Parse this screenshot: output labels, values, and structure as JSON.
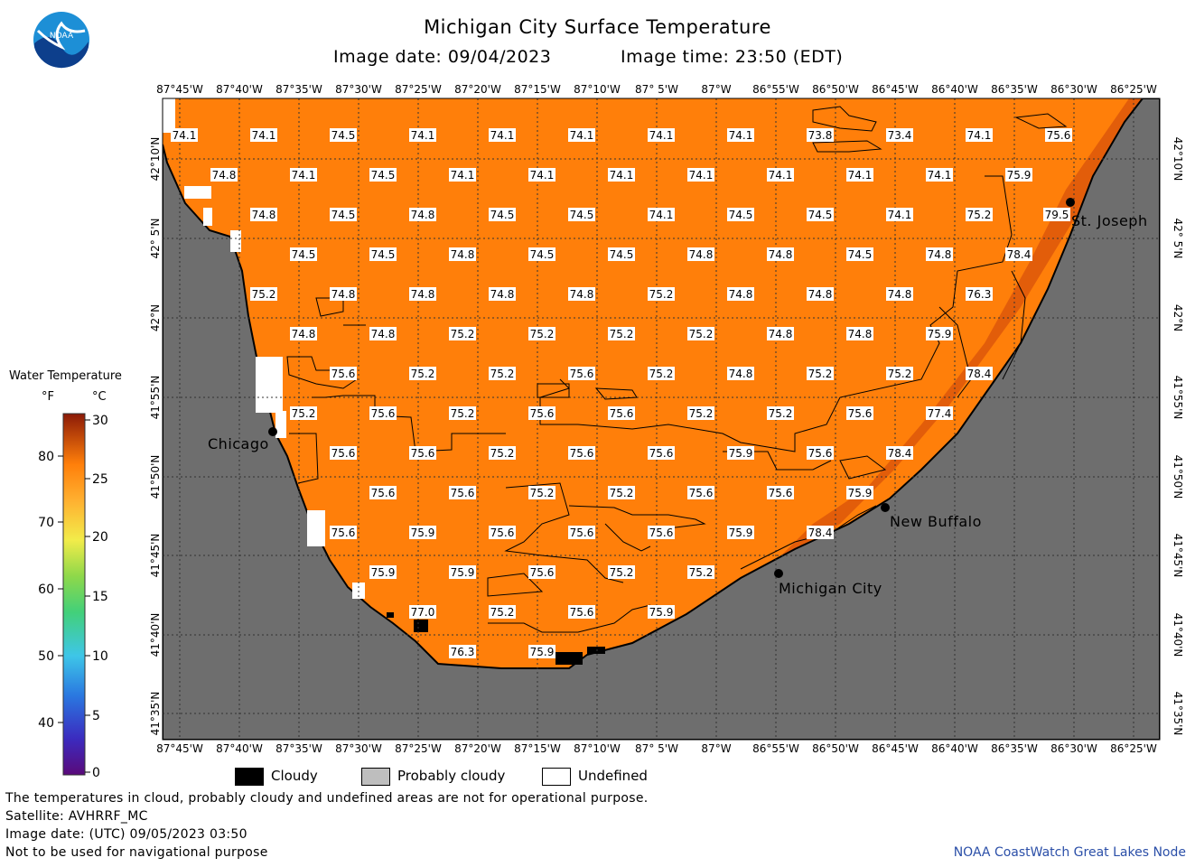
{
  "header": {
    "title": "Michigan City Surface Temperature",
    "image_date": "Image date: 09/04/2023",
    "image_time": "Image time: 23:50 (EDT)",
    "logo_text": "NOAA"
  },
  "colorbar": {
    "title": "Water Temperature",
    "unit_f": "°F",
    "unit_c": "°C",
    "f_ticks": [
      "80",
      "70",
      "60",
      "50",
      "40"
    ],
    "c_ticks": [
      "30",
      "25",
      "20",
      "15",
      "10",
      "5",
      "0"
    ]
  },
  "axes": {
    "lon_labels": [
      "87°45'W",
      "87°40'W",
      "87°35'W",
      "87°30'W",
      "87°25'W",
      "87°20'W",
      "87°15'W",
      "87°10'W",
      "87° 5'W",
      "87°W",
      "86°55'W",
      "86°50'W",
      "86°45'W",
      "86°40'W",
      "86°35'W",
      "86°30'W",
      "86°25'W"
    ],
    "lat_labels": [
      "42°10'N",
      "42° 5'N",
      "42°N",
      "41°55'N",
      "41°50'N",
      "41°45'N",
      "41°40'N",
      "41°35'N"
    ]
  },
  "places": [
    {
      "name": "St. Joseph"
    },
    {
      "name": "Chicago"
    },
    {
      "name": "New Buffalo"
    },
    {
      "name": "Michigan City"
    }
  ],
  "temperatures": [
    [
      "74.1",
      "74.1",
      "74.5",
      "74.1",
      "74.1",
      "74.1",
      "74.1",
      "74.1",
      "73.8",
      "73.4",
      "74.1",
      "75.6"
    ],
    [
      "74.8",
      "74.1",
      "74.5",
      "74.1",
      "74.1",
      "74.1",
      "74.1",
      "74.1",
      "74.1",
      "74.1",
      "75.9",
      "79.5"
    ],
    [
      "74.8",
      "74.5",
      "74.8",
      "74.5",
      "74.5",
      "74.1",
      "74.5",
      "74.5",
      "74.1",
      "75.2"
    ],
    [
      "74.5",
      "74.5",
      "74.8",
      "74.5",
      "74.5",
      "74.8",
      "74.8",
      "74.5",
      "74.8",
      "78.4"
    ],
    [
      "75.2",
      "74.8",
      "74.8",
      "74.8",
      "74.8",
      "75.2",
      "74.8",
      "74.8",
      "74.8",
      "76.3"
    ],
    [
      "74.8",
      "74.8",
      "75.2",
      "75.2",
      "75.2",
      "75.2",
      "74.8",
      "74.8",
      "75.9"
    ],
    [
      "75.6",
      "75.2",
      "75.2",
      "75.6",
      "75.2",
      "74.8",
      "75.2",
      "75.2",
      "78.4"
    ],
    [
      "75.2",
      "75.6",
      "75.2",
      "75.6",
      "75.6",
      "75.2",
      "75.2",
      "75.6",
      "77.4"
    ],
    [
      "75.6",
      "75.6",
      "75.2",
      "75.6",
      "75.6",
      "75.9",
      "75.6",
      "78.4"
    ],
    [
      "75.6",
      "75.6",
      "75.2",
      "75.2",
      "75.6",
      "75.6",
      "75.9"
    ],
    [
      "75.6",
      "75.9",
      "75.6",
      "75.6",
      "75.6",
      "75.9",
      "78.4"
    ],
    [
      "75.9",
      "75.9",
      "75.6",
      "75.2",
      "75.2"
    ],
    [
      "77.0",
      "75.2",
      "75.6",
      "75.9"
    ],
    [
      "76.3",
      "75.9"
    ]
  ],
  "legend": {
    "cloudy": "Cloudy",
    "probably_cloudy": "Probably cloudy",
    "undefined": "Undefined"
  },
  "footer": {
    "line1": "The temperatures in cloud, probably cloudy and undefined areas are not for operational purpose.",
    "line2": "Satellite: AVHRRF_MC",
    "line3": "Image date: (UTC) 09/05/2023  03:50",
    "line4": "Not to be used for navigational purpose",
    "credit": "NOAA CoastWatch Great Lakes Node"
  },
  "colors": {
    "water": "#ff7f0a",
    "water_warm": "#e25d0a",
    "land": "#6e6e6e",
    "undefined": "#ffffff",
    "cloudy": "#000000",
    "probably_cloudy": "#bebebe"
  }
}
